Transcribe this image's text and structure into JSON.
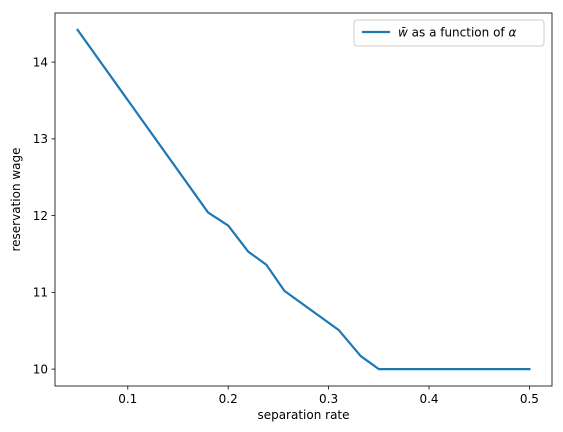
{
  "chart_data": {
    "type": "line",
    "title": "",
    "xlabel": "separation rate",
    "ylabel": "reservation wage",
    "xlim": [
      0.0275,
      0.5225
    ],
    "ylim": [
      9.78,
      14.64
    ],
    "xticks": [
      0.1,
      0.2,
      0.3,
      0.4,
      0.5
    ],
    "xtick_labels": [
      "0.1",
      "0.2",
      "0.3",
      "0.4",
      "0.5"
    ],
    "yticks": [
      10,
      11,
      12,
      13,
      14
    ],
    "ytick_labels": [
      "10",
      "11",
      "12",
      "13",
      "14"
    ],
    "grid": false,
    "legend_position": "top-right",
    "series": [
      {
        "name": "w̄ as a function of α",
        "legend_main": "w̄",
        "legend_rest": " as a function of ",
        "legend_alpha": "α",
        "color": "#1f77b4",
        "x": [
          0.05,
          0.18,
          0.2,
          0.22,
          0.238,
          0.256,
          0.31,
          0.332,
          0.35,
          0.5
        ],
        "y": [
          14.42,
          12.04,
          11.87,
          11.53,
          11.36,
          11.02,
          10.51,
          10.17,
          10.0,
          10.0
        ]
      }
    ]
  }
}
